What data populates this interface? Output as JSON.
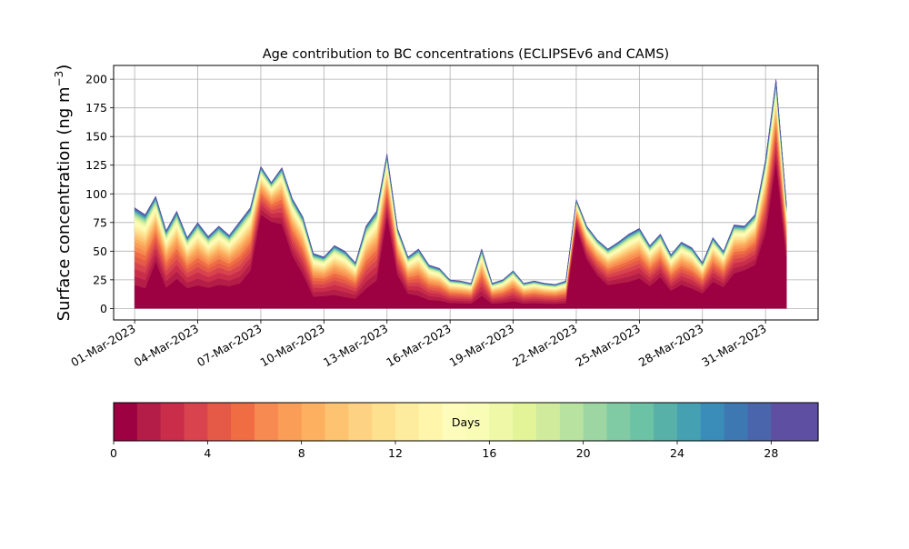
{
  "chart_data": {
    "type": "area",
    "title": "Age contribution to BC concentrations (ECLIPSEv6 and CAMS)",
    "xlabel": "",
    "ylabel": "Surface concentration (ng m",
    "ylabel_sup": "−3",
    "ylabel_close": ")",
    "ylim": [
      -10,
      212
    ],
    "xlim_days": [
      -1,
      32.5
    ],
    "grid": true,
    "legend": "none",
    "x_tick_labels": [
      "01-Mar-2023",
      "04-Mar-2023",
      "07-Mar-2023",
      "10-Mar-2023",
      "13-Mar-2023",
      "16-Mar-2023",
      "19-Mar-2023",
      "22-Mar-2023",
      "25-Mar-2023",
      "28-Mar-2023",
      "31-Mar-2023"
    ],
    "y_tick_labels": [
      "0",
      "25",
      "50",
      "75",
      "100",
      "125",
      "150",
      "175",
      "200"
    ],
    "y_ticks": [
      0,
      25,
      50,
      75,
      100,
      125,
      150,
      175,
      200
    ],
    "x_dates": [
      "01-Mar-2023",
      "01-Mar-2023 12:00",
      "02-Mar-2023",
      "02-Mar-2023 12:00",
      "03-Mar-2023",
      "03-Mar-2023 12:00",
      "04-Mar-2023",
      "04-Mar-2023 12:00",
      "05-Mar-2023",
      "05-Mar-2023 12:00",
      "06-Mar-2023",
      "06-Mar-2023 12:00",
      "07-Mar-2023",
      "07-Mar-2023 12:00",
      "08-Mar-2023",
      "08-Mar-2023 12:00",
      "09-Mar-2023",
      "09-Mar-2023 12:00",
      "10-Mar-2023",
      "10-Mar-2023 12:00",
      "11-Mar-2023",
      "11-Mar-2023 12:00",
      "12-Mar-2023",
      "12-Mar-2023 12:00",
      "13-Mar-2023",
      "13-Mar-2023 12:00",
      "14-Mar-2023",
      "14-Mar-2023 12:00",
      "15-Mar-2023",
      "15-Mar-2023 12:00",
      "16-Mar-2023",
      "16-Mar-2023 12:00",
      "17-Mar-2023",
      "17-Mar-2023 12:00",
      "18-Mar-2023",
      "18-Mar-2023 12:00",
      "19-Mar-2023",
      "19-Mar-2023 12:00",
      "20-Mar-2023",
      "20-Mar-2023 12:00",
      "21-Mar-2023",
      "21-Mar-2023 12:00",
      "22-Mar-2023",
      "22-Mar-2023 12:00",
      "23-Mar-2023",
      "23-Mar-2023 12:00",
      "24-Mar-2023",
      "24-Mar-2023 12:00",
      "25-Mar-2023",
      "25-Mar-2023 12:00",
      "26-Mar-2023",
      "26-Mar-2023 12:00",
      "27-Mar-2023",
      "27-Mar-2023 12:00",
      "28-Mar-2023",
      "28-Mar-2023 12:00",
      "29-Mar-2023",
      "29-Mar-2023 12:00",
      "30-Mar-2023",
      "30-Mar-2023 12:00",
      "31-Mar-2023",
      "31-Mar-2023 12:00",
      "01-Apr-2023"
    ],
    "total": [
      88,
      82,
      98,
      68,
      85,
      62,
      75,
      63,
      72,
      64,
      76,
      88,
      124,
      110,
      123,
      96,
      80,
      48,
      45,
      55,
      50,
      40,
      72,
      85,
      135,
      70,
      45,
      52,
      38,
      35,
      25,
      24,
      22,
      52,
      22,
      25,
      33,
      22,
      24,
      22,
      21,
      24,
      95,
      72,
      60,
      52,
      58,
      65,
      70,
      55,
      65,
      47,
      58,
      53,
      40,
      62,
      50,
      73,
      72,
      82,
      130,
      200,
      90
    ],
    "fresh_fraction": [
      0.14,
      0.12,
      0.35,
      0.18,
      0.22,
      0.2,
      0.18,
      0.2,
      0.2,
      0.22,
      0.2,
      0.3,
      0.62,
      0.65,
      0.55,
      0.42,
      0.3,
      0.12,
      0.15,
      0.12,
      0.1,
      0.12,
      0.15,
      0.2,
      0.55,
      0.35,
      0.2,
      0.12,
      0.1,
      0.1,
      0.1,
      0.1,
      0.1,
      0.12,
      0.1,
      0.1,
      0.1,
      0.1,
      0.1,
      0.1,
      0.1,
      0.1,
      0.72,
      0.55,
      0.42,
      0.32,
      0.3,
      0.28,
      0.3,
      0.28,
      0.35,
      0.25,
      0.28,
      0.25,
      0.25,
      0.3,
      0.3,
      0.35,
      0.4,
      0.4,
      0.45,
      0.6,
      0.42
    ],
    "colorbar": {
      "label": "Days",
      "min": 0,
      "max": 30,
      "tick_values": [
        0,
        4,
        8,
        12,
        16,
        20,
        24,
        28
      ],
      "tick_labels": [
        "0",
        "4",
        "8",
        "12",
        "16",
        "20",
        "24",
        "28"
      ],
      "colors": [
        "#9e0142",
        "#b41d47",
        "#c92d4a",
        "#d8434e",
        "#e55a47",
        "#f06d43",
        "#f78a50",
        "#fa9d57",
        "#fcb060",
        "#fdc371",
        "#fdd383",
        "#fee18f",
        "#feec9e",
        "#fff6ac",
        "#fefcba",
        "#f8fcb4",
        "#eef8a6",
        "#e2f398",
        "#cfeb9b",
        "#b8e2a0",
        "#9dd6a3",
        "#80cba4",
        "#6cc2a5",
        "#58b1a9",
        "#45a0b1",
        "#3a8db9",
        "#3e78b3",
        "#4a65ab",
        "#5e4fa2",
        "#5e4fa2"
      ]
    }
  }
}
